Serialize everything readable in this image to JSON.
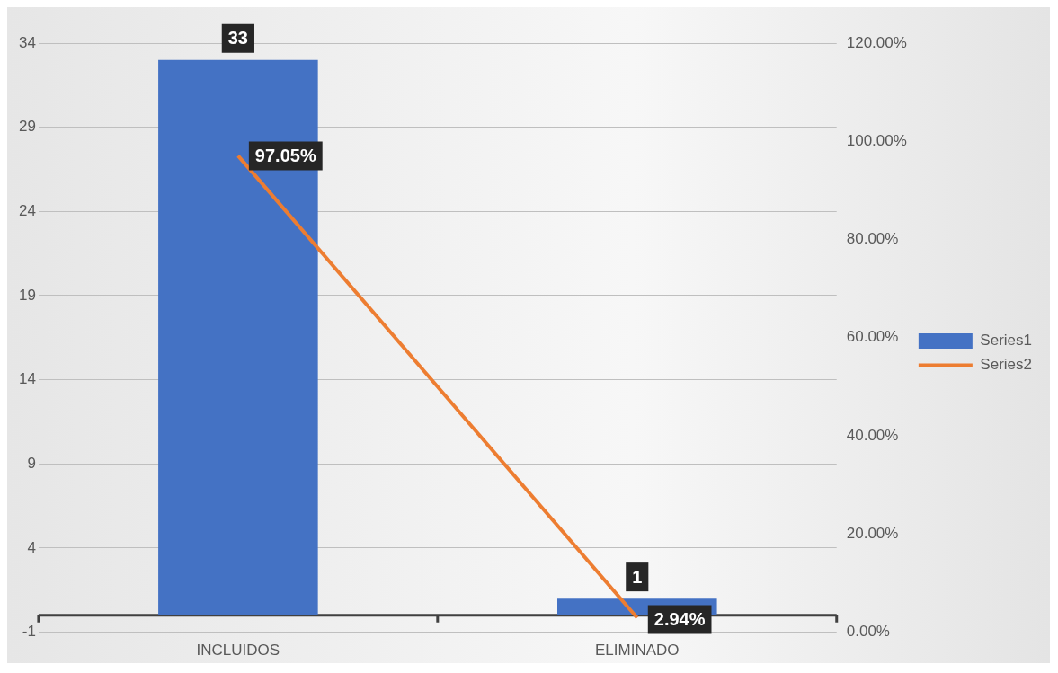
{
  "chart_data": {
    "type": "bar",
    "categories": [
      "INCLUIDOS",
      "ELIMINADO"
    ],
    "series": [
      {
        "name": "Series1",
        "color": "#4472c4",
        "values": [
          33,
          1
        ],
        "value_labels": [
          "33",
          "1"
        ]
      },
      {
        "name": "Series2",
        "type": "line",
        "axis": "y2",
        "color": "#ed7d31",
        "values": [
          97.05,
          2.94
        ],
        "value_labels": [
          "97.05%",
          "2.94%"
        ],
        "marker": "none"
      }
    ],
    "ylim": [
      -1,
      34
    ],
    "yticks": [
      -1,
      4,
      9,
      14,
      19,
      24,
      29,
      34
    ],
    "y2lim": [
      0,
      120
    ],
    "y2ticks": [
      {
        "value": 0,
        "label": "0.00%"
      },
      {
        "value": 20,
        "label": "20.00%"
      },
      {
        "value": 40,
        "label": "40.00%"
      },
      {
        "value": 60,
        "label": "60.00%"
      },
      {
        "value": 80,
        "label": "80.00%"
      },
      {
        "value": 100,
        "label": "100.00%"
      },
      {
        "value": 120,
        "label": "120.00%"
      }
    ],
    "grid": "y",
    "legend": "right"
  }
}
